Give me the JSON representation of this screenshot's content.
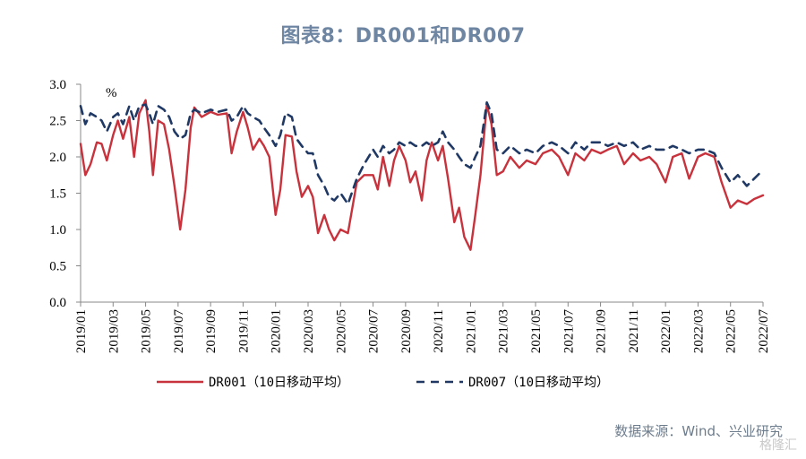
{
  "title": "图表8：DR001和DR007",
  "source": "数据来源：Wind、兴业研究",
  "watermark": "格隆汇",
  "chart_data": {
    "type": "line",
    "ylabel": "%",
    "ylim": [
      0,
      3.0
    ],
    "yticks": [
      "0.0",
      "0.5",
      "1.0",
      "1.5",
      "2.0",
      "2.5",
      "3.0"
    ],
    "xticks": [
      "2019/01",
      "2019/03",
      "2019/05",
      "2019/07",
      "2019/09",
      "2019/11",
      "2020/01",
      "2020/03",
      "2020/05",
      "2020/07",
      "2020/09",
      "2020/11",
      "2021/01",
      "2021/03",
      "2021/05",
      "2021/07",
      "2021/09",
      "2021/11",
      "2022/01",
      "2022/03",
      "2022/05",
      "2022/07"
    ],
    "x_start": "2019/01",
    "x_end": "2022/07",
    "legend_position": "bottom",
    "grid": false,
    "series": [
      {
        "name": "DR001（10日移动平均）",
        "color": "#c8323c",
        "style": "solid",
        "points": [
          [
            "2019/01",
            2.18
          ],
          [
            "2019/01/10",
            1.75
          ],
          [
            "2019/01/20",
            1.9
          ],
          [
            "2019/02/01",
            2.2
          ],
          [
            "2019/02/10",
            2.18
          ],
          [
            "2019/02/20",
            1.95
          ],
          [
            "2019/03/01",
            2.3
          ],
          [
            "2019/03/10",
            2.5
          ],
          [
            "2019/03/20",
            2.25
          ],
          [
            "2019/04/01",
            2.55
          ],
          [
            "2019/04/10",
            2.0
          ],
          [
            "2019/04/20",
            2.6
          ],
          [
            "2019/05/01",
            2.78
          ],
          [
            "2019/05/08",
            2.35
          ],
          [
            "2019/05/15",
            1.75
          ],
          [
            "2019/05/25",
            2.5
          ],
          [
            "2019/06/05",
            2.45
          ],
          [
            "2019/06/15",
            2.1
          ],
          [
            "2019/06/25",
            1.6
          ],
          [
            "2019/07/05",
            1.0
          ],
          [
            "2019/07/15",
            1.55
          ],
          [
            "2019/07/25",
            2.4
          ],
          [
            "2019/08/01",
            2.68
          ],
          [
            "2019/08/15",
            2.55
          ],
          [
            "2019/09/01",
            2.62
          ],
          [
            "2019/09/15",
            2.58
          ],
          [
            "2019/10/01",
            2.6
          ],
          [
            "2019/10/10",
            2.05
          ],
          [
            "2019/10/20",
            2.35
          ],
          [
            "2019/11/01",
            2.62
          ],
          [
            "2019/11/10",
            2.4
          ],
          [
            "2019/11/20",
            2.1
          ],
          [
            "2019/12/01",
            2.25
          ],
          [
            "2019/12/10",
            2.15
          ],
          [
            "2019/12/20",
            2.0
          ],
          [
            "2020/01/01",
            1.2
          ],
          [
            "2020/01/10",
            1.55
          ],
          [
            "2020/01/20",
            2.3
          ],
          [
            "2020/02/01",
            2.28
          ],
          [
            "2020/02/10",
            1.8
          ],
          [
            "2020/02/20",
            1.45
          ],
          [
            "2020/03/01",
            1.6
          ],
          [
            "2020/03/10",
            1.45
          ],
          [
            "2020/03/20",
            0.95
          ],
          [
            "2020/04/01",
            1.2
          ],
          [
            "2020/04/10",
            1.0
          ],
          [
            "2020/04/20",
            0.85
          ],
          [
            "2020/05/01",
            1.0
          ],
          [
            "2020/05/15",
            0.95
          ],
          [
            "2020/06/01",
            1.65
          ],
          [
            "2020/06/15",
            1.75
          ],
          [
            "2020/07/01",
            1.75
          ],
          [
            "2020/07/10",
            1.55
          ],
          [
            "2020/07/20",
            2.0
          ],
          [
            "2020/08/01",
            1.6
          ],
          [
            "2020/08/10",
            1.95
          ],
          [
            "2020/08/20",
            2.15
          ],
          [
            "2020/09/01",
            1.95
          ],
          [
            "2020/09/10",
            1.65
          ],
          [
            "2020/09/20",
            1.8
          ],
          [
            "2020/10/01",
            1.4
          ],
          [
            "2020/10/10",
            1.95
          ],
          [
            "2020/10/20",
            2.2
          ],
          [
            "2020/11/01",
            1.95
          ],
          [
            "2020/11/10",
            2.15
          ],
          [
            "2020/11/20",
            1.7
          ],
          [
            "2020/12/01",
            1.1
          ],
          [
            "2020/12/10",
            1.3
          ],
          [
            "2020/12/20",
            0.9
          ],
          [
            "2021/01/01",
            0.72
          ],
          [
            "2021/01/10",
            1.2
          ],
          [
            "2021/01/20",
            1.75
          ],
          [
            "2021/02/01",
            2.72
          ],
          [
            "2021/02/10",
            2.45
          ],
          [
            "2021/02/20",
            1.75
          ],
          [
            "2021/03/01",
            1.8
          ],
          [
            "2021/03/15",
            2.0
          ],
          [
            "2021/04/01",
            1.85
          ],
          [
            "2021/04/15",
            1.95
          ],
          [
            "2021/05/01",
            1.9
          ],
          [
            "2021/05/15",
            2.05
          ],
          [
            "2021/06/01",
            2.1
          ],
          [
            "2021/06/15",
            2.0
          ],
          [
            "2021/07/01",
            1.75
          ],
          [
            "2021/07/15",
            2.05
          ],
          [
            "2021/08/01",
            1.95
          ],
          [
            "2021/08/15",
            2.1
          ],
          [
            "2021/09/01",
            2.05
          ],
          [
            "2021/09/15",
            2.1
          ],
          [
            "2021/10/01",
            2.15
          ],
          [
            "2021/10/15",
            1.9
          ],
          [
            "2021/11/01",
            2.05
          ],
          [
            "2021/11/15",
            1.95
          ],
          [
            "2021/12/01",
            2.0
          ],
          [
            "2021/12/15",
            1.9
          ],
          [
            "2022/01/01",
            1.65
          ],
          [
            "2022/01/15",
            2.0
          ],
          [
            "2022/02/01",
            2.05
          ],
          [
            "2022/02/15",
            1.7
          ],
          [
            "2022/03/01",
            2.0
          ],
          [
            "2022/03/15",
            2.05
          ],
          [
            "2022/04/01",
            2.0
          ],
          [
            "2022/04/15",
            1.65
          ],
          [
            "2022/05/01",
            1.3
          ],
          [
            "2022/05/15",
            1.4
          ],
          [
            "2022/06/01",
            1.35
          ],
          [
            "2022/06/15",
            1.42
          ],
          [
            "2022/07",
            1.47
          ]
        ]
      },
      {
        "name": "DR007（10日移动平均）",
        "color": "#1f3864",
        "style": "dashed",
        "points": [
          [
            "2019/01",
            2.7
          ],
          [
            "2019/01/10",
            2.45
          ],
          [
            "2019/01/20",
            2.6
          ],
          [
            "2019/02/01",
            2.55
          ],
          [
            "2019/02/10",
            2.5
          ],
          [
            "2019/02/20",
            2.35
          ],
          [
            "2019/03/01",
            2.55
          ],
          [
            "2019/03/10",
            2.6
          ],
          [
            "2019/03/20",
            2.45
          ],
          [
            "2019/04/01",
            2.7
          ],
          [
            "2019/04/10",
            2.5
          ],
          [
            "2019/04/20",
            2.7
          ],
          [
            "2019/05/01",
            2.72
          ],
          [
            "2019/05/08",
            2.6
          ],
          [
            "2019/05/15",
            2.45
          ],
          [
            "2019/05/25",
            2.7
          ],
          [
            "2019/06/05",
            2.65
          ],
          [
            "2019/06/15",
            2.55
          ],
          [
            "2019/06/25",
            2.35
          ],
          [
            "2019/07/05",
            2.25
          ],
          [
            "2019/07/15",
            2.3
          ],
          [
            "2019/07/25",
            2.6
          ],
          [
            "2019/08/01",
            2.65
          ],
          [
            "2019/08/15",
            2.6
          ],
          [
            "2019/09/01",
            2.65
          ],
          [
            "2019/09/15",
            2.62
          ],
          [
            "2019/10/01",
            2.65
          ],
          [
            "2019/10/10",
            2.5
          ],
          [
            "2019/10/20",
            2.55
          ],
          [
            "2019/11/01",
            2.7
          ],
          [
            "2019/11/10",
            2.6
          ],
          [
            "2019/11/20",
            2.55
          ],
          [
            "2019/12/01",
            2.5
          ],
          [
            "2019/12/10",
            2.4
          ],
          [
            "2019/12/20",
            2.3
          ],
          [
            "2020/01/01",
            2.15
          ],
          [
            "2020/01/10",
            2.3
          ],
          [
            "2020/01/20",
            2.6
          ],
          [
            "2020/02/01",
            2.55
          ],
          [
            "2020/02/10",
            2.25
          ],
          [
            "2020/02/20",
            2.15
          ],
          [
            "2020/03/01",
            2.05
          ],
          [
            "2020/03/10",
            2.05
          ],
          [
            "2020/03/20",
            1.75
          ],
          [
            "2020/04/01",
            1.6
          ],
          [
            "2020/04/10",
            1.45
          ],
          [
            "2020/04/20",
            1.4
          ],
          [
            "2020/05/01",
            1.5
          ],
          [
            "2020/05/15",
            1.35
          ],
          [
            "2020/06/01",
            1.7
          ],
          [
            "2020/06/15",
            1.9
          ],
          [
            "2020/07/01",
            2.1
          ],
          [
            "2020/07/10",
            2.0
          ],
          [
            "2020/07/20",
            2.15
          ],
          [
            "2020/08/01",
            2.05
          ],
          [
            "2020/08/10",
            2.1
          ],
          [
            "2020/08/20",
            2.2
          ],
          [
            "2020/09/01",
            2.15
          ],
          [
            "2020/09/10",
            2.2
          ],
          [
            "2020/09/20",
            2.15
          ],
          [
            "2020/10/01",
            2.15
          ],
          [
            "2020/10/10",
            2.2
          ],
          [
            "2020/10/20",
            2.15
          ],
          [
            "2020/11/01",
            2.2
          ],
          [
            "2020/11/10",
            2.35
          ],
          [
            "2020/11/20",
            2.2
          ],
          [
            "2020/12/01",
            2.1
          ],
          [
            "2020/12/10",
            2.0
          ],
          [
            "2020/12/20",
            1.9
          ],
          [
            "2021/01/01",
            1.85
          ],
          [
            "2021/01/10",
            2.0
          ],
          [
            "2021/01/20",
            2.15
          ],
          [
            "2021/02/01",
            2.75
          ],
          [
            "2021/02/10",
            2.6
          ],
          [
            "2021/02/20",
            2.1
          ],
          [
            "2021/03/01",
            2.05
          ],
          [
            "2021/03/15",
            2.15
          ],
          [
            "2021/04/01",
            2.05
          ],
          [
            "2021/04/15",
            2.1
          ],
          [
            "2021/05/01",
            2.05
          ],
          [
            "2021/05/15",
            2.15
          ],
          [
            "2021/06/01",
            2.2
          ],
          [
            "2021/06/15",
            2.15
          ],
          [
            "2021/07/01",
            2.05
          ],
          [
            "2021/07/15",
            2.2
          ],
          [
            "2021/08/01",
            2.1
          ],
          [
            "2021/08/15",
            2.2
          ],
          [
            "2021/09/01",
            2.2
          ],
          [
            "2021/09/15",
            2.15
          ],
          [
            "2021/10/01",
            2.2
          ],
          [
            "2021/10/15",
            2.15
          ],
          [
            "2021/11/01",
            2.2
          ],
          [
            "2021/11/15",
            2.1
          ],
          [
            "2021/12/01",
            2.15
          ],
          [
            "2021/12/15",
            2.1
          ],
          [
            "2022/01/01",
            2.1
          ],
          [
            "2022/01/15",
            2.15
          ],
          [
            "2022/02/01",
            2.1
          ],
          [
            "2022/02/15",
            2.05
          ],
          [
            "2022/03/01",
            2.1
          ],
          [
            "2022/03/15",
            2.1
          ],
          [
            "2022/04/01",
            2.05
          ],
          [
            "2022/04/15",
            1.85
          ],
          [
            "2022/05/01",
            1.65
          ],
          [
            "2022/05/15",
            1.75
          ],
          [
            "2022/06/01",
            1.6
          ],
          [
            "2022/06/15",
            1.7
          ],
          [
            "2022/07",
            1.82
          ]
        ]
      }
    ]
  }
}
